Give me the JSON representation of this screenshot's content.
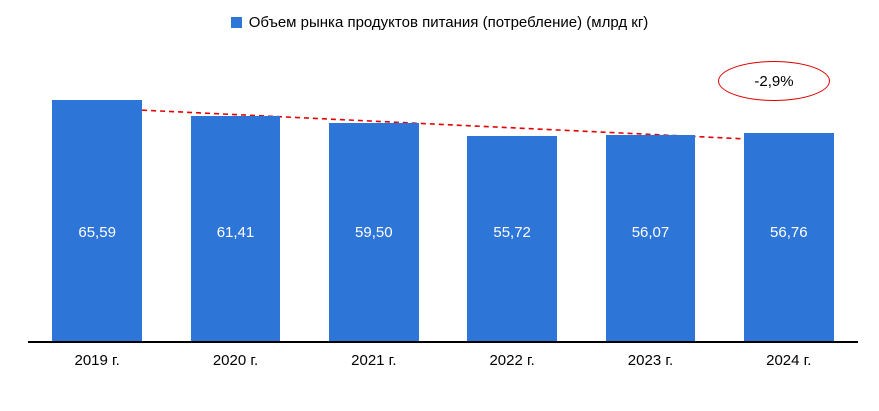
{
  "chart_data": {
    "type": "bar",
    "title": "",
    "legend": "Объем рынка продуктов питания (потребление) (млрд кг)",
    "categories": [
      "2019 г.",
      "2020 г.",
      "2021 г.",
      "2022 г.",
      "2023 г.",
      "2024 г."
    ],
    "values": [
      65.59,
      61.41,
      59.5,
      55.72,
      56.07,
      56.76
    ],
    "value_labels": [
      "65,59",
      "61,41",
      "59,50",
      "55,72",
      "56,07",
      "56,76"
    ],
    "ylim": [
      0,
      66.2
    ],
    "grid": false,
    "legend_position": "top-center",
    "bar_color": "#2e75d8",
    "value_label_color": "#ffffff",
    "axis_color": "#000000",
    "trend": {
      "color": "#e00000",
      "style": "dashed-arrow"
    },
    "annotation": {
      "label": "-2,9%",
      "border_color": "#e00000"
    }
  }
}
